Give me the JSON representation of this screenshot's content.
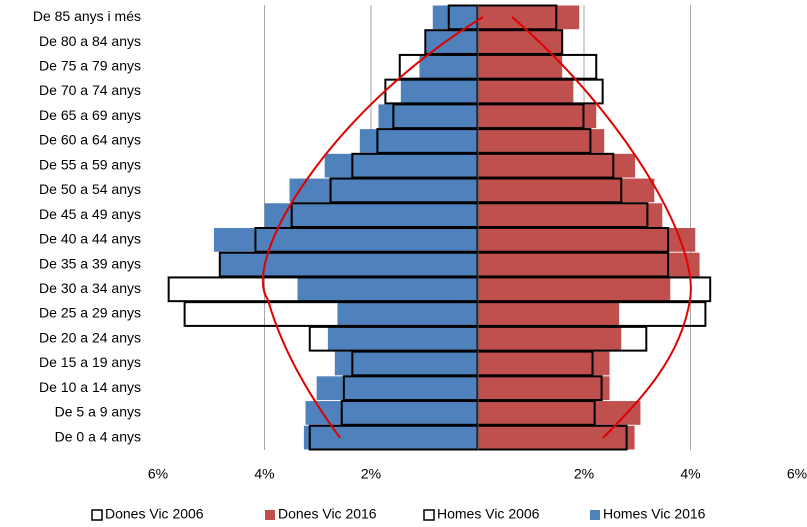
{
  "chart_data": {
    "type": "pyramid",
    "categories": [
      "De 85 anys i més",
      "De 80 a 84 anys",
      "De 75 a 79 anys",
      "De 70 a 74 anys",
      "De 65 a 69 anys",
      "De 60 a 64 anys",
      "De 55 a 59 anys",
      "De 50 a 54 anys",
      "De 45 a 49 anys",
      "De 40 a 44 anys",
      "De 35 a 39 anys",
      "De 30 a 34 anys",
      "De 25 a 29 anys",
      "De 20 a 24 anys",
      "De 15 a 19 anys",
      "De 10 a 14 anys",
      "De 5 a 9 anys",
      "De 0 a 4 anys"
    ],
    "series": [
      {
        "name": "Dones Vic 2006",
        "color": "#ffffff",
        "values": [
          1.48,
          1.59,
          2.23,
          2.35,
          1.99,
          2.12,
          2.55,
          2.7,
          3.19,
          3.58,
          3.58,
          4.37,
          4.28,
          3.17,
          2.16,
          2.33,
          2.2,
          2.8
        ]
      },
      {
        "name": "Dones Vic 2016",
        "color": "#c0504d",
        "values": [
          1.91,
          1.58,
          1.59,
          1.8,
          2.23,
          2.38,
          2.96,
          3.32,
          3.47,
          4.09,
          4.17,
          3.62,
          2.66,
          2.7,
          2.48,
          2.48,
          3.06,
          2.95
        ]
      },
      {
        "name": "Homes Vic 2006",
        "color": "#ffffff",
        "values": [
          -0.54,
          -0.98,
          -1.46,
          -1.73,
          -1.58,
          -1.88,
          -2.35,
          -2.76,
          -3.49,
          -4.17,
          -4.84,
          -5.8,
          -5.5,
          -3.15,
          -2.35,
          -2.51,
          -2.55,
          -3.15
        ]
      },
      {
        "name": "Homes Vic 2016",
        "color": "#4f81bd",
        "values": [
          -0.84,
          -0.98,
          -1.09,
          -1.44,
          -1.86,
          -2.21,
          -2.87,
          -3.53,
          -4.0,
          -4.95,
          -4.84,
          -3.38,
          -2.63,
          -2.81,
          -2.68,
          -3.02,
          -3.23,
          -3.26
        ]
      }
    ],
    "xlim": [
      -6,
      6
    ],
    "xticks": [
      {
        "value": -6,
        "label": "6%"
      },
      {
        "value": -4,
        "label": "4%"
      },
      {
        "value": -2,
        "label": "2%"
      },
      {
        "value": 2,
        "label": "2%"
      },
      {
        "value": 4,
        "label": "4%"
      },
      {
        "value": 6,
        "label": "6%"
      }
    ],
    "grid": true,
    "legend": "bottom"
  }
}
